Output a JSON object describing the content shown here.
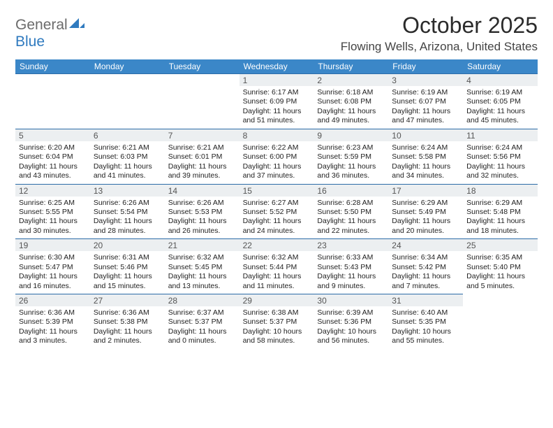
{
  "logo": {
    "text_a": "General",
    "text_b": "Blue",
    "color_a": "#6b6b6b",
    "color_b": "#2f7abf",
    "icon_color": "#2f7abf"
  },
  "header": {
    "title": "October 2025",
    "location": "Flowing Wells, Arizona, United States"
  },
  "colors": {
    "header_row_bg": "#3b87c8",
    "header_row_text": "#ffffff",
    "cell_border": "#2c6ca8",
    "daynum_bg": "#eceff1",
    "background": "#ffffff"
  },
  "weekdays": [
    "Sunday",
    "Monday",
    "Tuesday",
    "Wednesday",
    "Thursday",
    "Friday",
    "Saturday"
  ],
  "days": [
    {
      "n": 1,
      "sunrise": "6:17 AM",
      "sunset": "6:09 PM",
      "daylight": "11 hours and 51 minutes."
    },
    {
      "n": 2,
      "sunrise": "6:18 AM",
      "sunset": "6:08 PM",
      "daylight": "11 hours and 49 minutes."
    },
    {
      "n": 3,
      "sunrise": "6:19 AM",
      "sunset": "6:07 PM",
      "daylight": "11 hours and 47 minutes."
    },
    {
      "n": 4,
      "sunrise": "6:19 AM",
      "sunset": "6:05 PM",
      "daylight": "11 hours and 45 minutes."
    },
    {
      "n": 5,
      "sunrise": "6:20 AM",
      "sunset": "6:04 PM",
      "daylight": "11 hours and 43 minutes."
    },
    {
      "n": 6,
      "sunrise": "6:21 AM",
      "sunset": "6:03 PM",
      "daylight": "11 hours and 41 minutes."
    },
    {
      "n": 7,
      "sunrise": "6:21 AM",
      "sunset": "6:01 PM",
      "daylight": "11 hours and 39 minutes."
    },
    {
      "n": 8,
      "sunrise": "6:22 AM",
      "sunset": "6:00 PM",
      "daylight": "11 hours and 37 minutes."
    },
    {
      "n": 9,
      "sunrise": "6:23 AM",
      "sunset": "5:59 PM",
      "daylight": "11 hours and 36 minutes."
    },
    {
      "n": 10,
      "sunrise": "6:24 AM",
      "sunset": "5:58 PM",
      "daylight": "11 hours and 34 minutes."
    },
    {
      "n": 11,
      "sunrise": "6:24 AM",
      "sunset": "5:56 PM",
      "daylight": "11 hours and 32 minutes."
    },
    {
      "n": 12,
      "sunrise": "6:25 AM",
      "sunset": "5:55 PM",
      "daylight": "11 hours and 30 minutes."
    },
    {
      "n": 13,
      "sunrise": "6:26 AM",
      "sunset": "5:54 PM",
      "daylight": "11 hours and 28 minutes."
    },
    {
      "n": 14,
      "sunrise": "6:26 AM",
      "sunset": "5:53 PM",
      "daylight": "11 hours and 26 minutes."
    },
    {
      "n": 15,
      "sunrise": "6:27 AM",
      "sunset": "5:52 PM",
      "daylight": "11 hours and 24 minutes."
    },
    {
      "n": 16,
      "sunrise": "6:28 AM",
      "sunset": "5:50 PM",
      "daylight": "11 hours and 22 minutes."
    },
    {
      "n": 17,
      "sunrise": "6:29 AM",
      "sunset": "5:49 PM",
      "daylight": "11 hours and 20 minutes."
    },
    {
      "n": 18,
      "sunrise": "6:29 AM",
      "sunset": "5:48 PM",
      "daylight": "11 hours and 18 minutes."
    },
    {
      "n": 19,
      "sunrise": "6:30 AM",
      "sunset": "5:47 PM",
      "daylight": "11 hours and 16 minutes."
    },
    {
      "n": 20,
      "sunrise": "6:31 AM",
      "sunset": "5:46 PM",
      "daylight": "11 hours and 15 minutes."
    },
    {
      "n": 21,
      "sunrise": "6:32 AM",
      "sunset": "5:45 PM",
      "daylight": "11 hours and 13 minutes."
    },
    {
      "n": 22,
      "sunrise": "6:32 AM",
      "sunset": "5:44 PM",
      "daylight": "11 hours and 11 minutes."
    },
    {
      "n": 23,
      "sunrise": "6:33 AM",
      "sunset": "5:43 PM",
      "daylight": "11 hours and 9 minutes."
    },
    {
      "n": 24,
      "sunrise": "6:34 AM",
      "sunset": "5:42 PM",
      "daylight": "11 hours and 7 minutes."
    },
    {
      "n": 25,
      "sunrise": "6:35 AM",
      "sunset": "5:40 PM",
      "daylight": "11 hours and 5 minutes."
    },
    {
      "n": 26,
      "sunrise": "6:36 AM",
      "sunset": "5:39 PM",
      "daylight": "11 hours and 3 minutes."
    },
    {
      "n": 27,
      "sunrise": "6:36 AM",
      "sunset": "5:38 PM",
      "daylight": "11 hours and 2 minutes."
    },
    {
      "n": 28,
      "sunrise": "6:37 AM",
      "sunset": "5:37 PM",
      "daylight": "11 hours and 0 minutes."
    },
    {
      "n": 29,
      "sunrise": "6:38 AM",
      "sunset": "5:37 PM",
      "daylight": "10 hours and 58 minutes."
    },
    {
      "n": 30,
      "sunrise": "6:39 AM",
      "sunset": "5:36 PM",
      "daylight": "10 hours and 56 minutes."
    },
    {
      "n": 31,
      "sunrise": "6:40 AM",
      "sunset": "5:35 PM",
      "daylight": "10 hours and 55 minutes."
    }
  ],
  "leading_empty": 3,
  "labels": {
    "sunrise": "Sunrise:",
    "sunset": "Sunset:",
    "daylight": "Daylight:"
  }
}
